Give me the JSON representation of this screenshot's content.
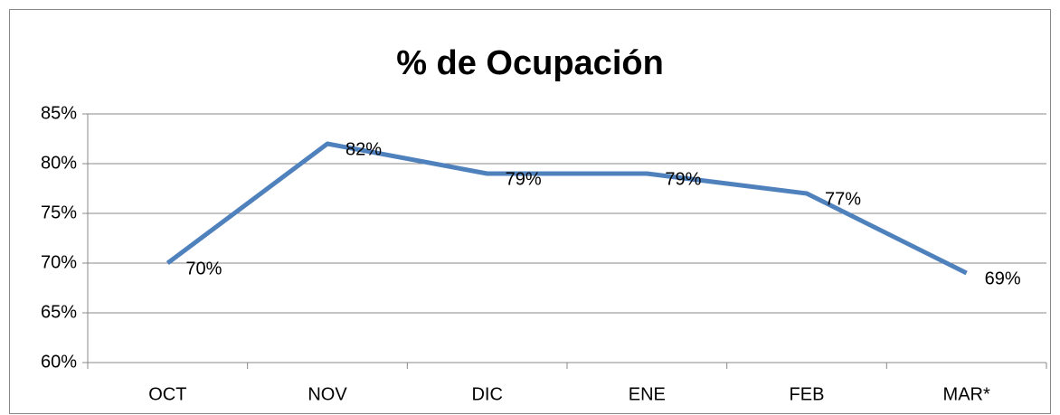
{
  "chart_data": {
    "type": "line",
    "title": "% de Ocupación",
    "categories": [
      "OCT",
      "NOV",
      "DIC",
      "ENE",
      "FEB",
      "MAR*"
    ],
    "series": [
      {
        "name": "% de Ocupación",
        "color": "#4f81bd",
        "values": [
          70,
          82,
          79,
          79,
          77,
          69
        ],
        "value_labels": [
          "70%",
          "82%",
          "79%",
          "79%",
          "77%",
          "69%"
        ]
      }
    ],
    "ylim": [
      60,
      85
    ],
    "yticks": [
      {
        "value": 60,
        "label": "60%"
      },
      {
        "value": 65,
        "label": "65%"
      },
      {
        "value": 70,
        "label": "70%"
      },
      {
        "value": 75,
        "label": "75%"
      },
      {
        "value": 80,
        "label": "80%"
      },
      {
        "value": 85,
        "label": "85%"
      }
    ],
    "grid": true,
    "legend": false
  }
}
